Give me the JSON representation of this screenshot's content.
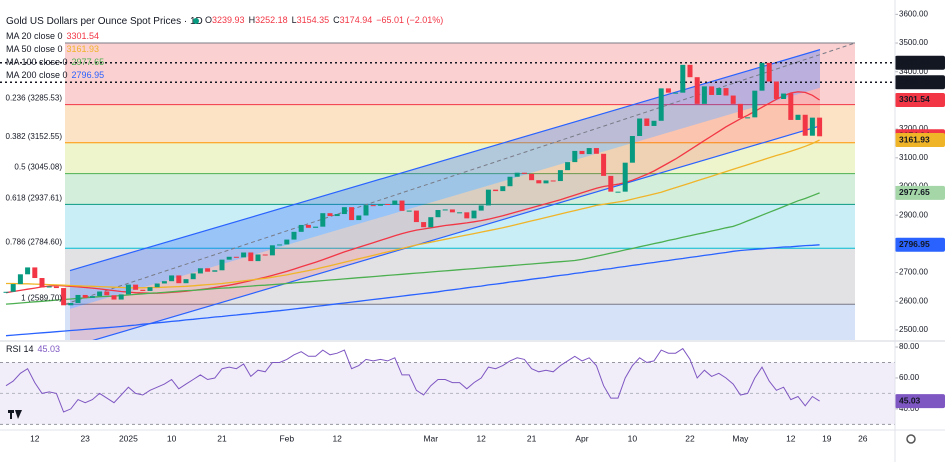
{
  "chart_data": {
    "type": "candlestick",
    "title": "Gold US Dollars per Ounce Spot Prices · 1D",
    "ohlc": [
      {
        "label": "O",
        "value": 3239.93
      },
      {
        "label": "H",
        "value": 3252.18
      },
      {
        "label": "L",
        "value": 3154.35
      },
      {
        "label": "C",
        "value": 3174.94
      }
    ],
    "change": "−65.01 (−2.01%)",
    "up_color": "#089981",
    "down_color": "#f23645",
    "categories": [
      null,
      null,
      null,
      null,
      "12",
      null,
      null,
      null,
      null,
      null,
      null,
      "23",
      null,
      null,
      null,
      null,
      null,
      "2025",
      null,
      null,
      null,
      null,
      null,
      "10",
      null,
      null,
      null,
      null,
      null,
      null,
      "21",
      null,
      null,
      null,
      null,
      null,
      null,
      null,
      null,
      "Feb",
      null,
      null,
      null,
      null,
      null,
      null,
      "12",
      null,
      null,
      null,
      null,
      null,
      null,
      null,
      null,
      null,
      null,
      null,
      null,
      "Mar",
      null,
      null,
      null,
      null,
      null,
      null,
      "12",
      null,
      null,
      null,
      null,
      null,
      null,
      "21",
      null,
      null,
      null,
      null,
      null,
      null,
      "Apr",
      null,
      null,
      null,
      null,
      null,
      null,
      "10",
      null,
      null,
      null,
      null,
      null,
      null,
      null,
      "22",
      null,
      null,
      null,
      null,
      null,
      null,
      "May",
      null,
      null,
      null,
      null,
      null,
      null,
      "12",
      null,
      null,
      null,
      null,
      "19",
      null,
      null,
      null,
      null,
      "26"
    ],
    "values": [
      2633,
      2660,
      2694,
      2718,
      2681,
      2648,
      2652,
      2646,
      2586,
      2594,
      2622,
      2612,
      2618,
      2634,
      2621,
      2606,
      2624,
      2658,
      2640,
      2636,
      2649,
      2662,
      2670,
      2690,
      2663,
      2677,
      2697,
      2715,
      2703,
      2708,
      2745,
      2755,
      2753,
      2770,
      2740,
      2763,
      2760,
      2795,
      2798,
      2815,
      2842,
      2866,
      2856,
      2860,
      2907,
      2897,
      2904,
      2928,
      2883,
      2899,
      2935,
      2933,
      2939,
      2936,
      2951,
      2915,
      2916,
      2876,
      2858,
      2893,
      2918,
      2920,
      2910,
      2910,
      2889,
      2916,
      2934,
      2989,
      2984,
      3001,
      3034,
      3048,
      3044,
      3022,
      3011,
      3021,
      3019,
      3057,
      3085,
      3124,
      3113,
      3134,
      3114,
      3037,
      2982,
      2982,
      3083,
      3176,
      3237,
      3211,
      3229,
      3342,
      3327,
      3327,
      3424,
      3381,
      3288,
      3349,
      3319,
      3343,
      3317,
      3288,
      3239,
      3241,
      3334,
      3431,
      3366,
      3305,
      3324,
      3232,
      3250,
      3177,
      3240,
      3174.94,
      null,
      null,
      null,
      null,
      null,
      null
    ],
    "series": [
      {
        "name": "MA 20 close 0",
        "color": "#f23645",
        "values": [
          2630,
          2634,
          2638,
          2642,
          2646,
          2650,
          2653,
          2655,
          2654,
          2652,
          2650,
          2648,
          2646,
          2643,
          2640,
          2637,
          2634,
          2632,
          2630,
          2629,
          2628,
          2628,
          2629,
          2631,
          2633,
          2635,
          2638,
          2641,
          2644,
          2648,
          2652,
          2656,
          2661,
          2666,
          2672,
          2678,
          2684,
          2690,
          2697,
          2704,
          2712,
          2720,
          2728,
          2736,
          2745,
          2754,
          2763,
          2772,
          2780,
          2788,
          2796,
          2804,
          2812,
          2820,
          2828,
          2836,
          2842,
          2848,
          2852,
          2856,
          2860,
          2864,
          2867,
          2870,
          2873,
          2877,
          2881,
          2886,
          2892,
          2898,
          2905,
          2912,
          2919,
          2926,
          2933,
          2940,
          2947,
          2954,
          2962,
          2970,
          2978,
          2986,
          2994,
          3000,
          3004,
          3008,
          3014,
          3022,
          3032,
          3042,
          3054,
          3068,
          3082,
          3096,
          3112,
          3128,
          3144,
          3160,
          3176,
          3192,
          3208,
          3222,
          3236,
          3248,
          3262,
          3276,
          3290,
          3304,
          3316,
          3326,
          3330,
          3328,
          3318,
          3301.54,
          null,
          null,
          null,
          null,
          null,
          null
        ]
      },
      {
        "name": "MA 50 close 0",
        "color": "#f0b429",
        "values": [
          2662,
          2662,
          2661,
          2661,
          2660,
          2659,
          2658,
          2657,
          2656,
          2655,
          2654,
          2653,
          2652,
          2651,
          2650,
          2649,
          2648,
          2647,
          2647,
          2647,
          2648,
          2648,
          2649,
          2650,
          2651,
          2652,
          2654,
          2656,
          2658,
          2660,
          2662,
          2665,
          2668,
          2671,
          2674,
          2677,
          2680,
          2684,
          2688,
          2692,
          2697,
          2702,
          2707,
          2712,
          2718,
          2724,
          2730,
          2736,
          2742,
          2748,
          2754,
          2760,
          2766,
          2772,
          2778,
          2784,
          2790,
          2796,
          2801,
          2806,
          2811,
          2816,
          2821,
          2826,
          2831,
          2836,
          2841,
          2846,
          2851,
          2856,
          2862,
          2868,
          2874,
          2880,
          2886,
          2892,
          2898,
          2904,
          2910,
          2916,
          2922,
          2928,
          2934,
          2938,
          2942,
          2946,
          2950,
          2956,
          2962,
          2968,
          2974,
          2980,
          2988,
          2996,
          3004,
          3012,
          3020,
          3028,
          3036,
          3044,
          3052,
          3060,
          3068,
          3076,
          3084,
          3092,
          3100,
          3108,
          3115,
          3123,
          3131,
          3140,
          3150,
          3161.93,
          null,
          null,
          null,
          null,
          null,
          null
        ]
      },
      {
        "name": "MA 100 close 0",
        "color": "#4caf50",
        "values": [
          2590,
          2592,
          2594,
          2596,
          2598,
          2600,
          2602,
          2604,
          2606,
          2608,
          2610,
          2612,
          2614,
          2616,
          2617,
          2618,
          2620,
          2622,
          2624,
          2626,
          2628,
          2629,
          2631,
          2633,
          2635,
          2637,
          2638,
          2640,
          2642,
          2644,
          2646,
          2647,
          2649,
          2651,
          2653,
          2655,
          2656,
          2658,
          2660,
          2662,
          2664,
          2666,
          2668,
          2670,
          2672,
          2674,
          2676,
          2678,
          2680,
          2682,
          2684,
          2686,
          2688,
          2690,
          2692,
          2694,
          2696,
          2698,
          2700,
          2702,
          2704,
          2706,
          2708,
          2710,
          2712,
          2714,
          2716,
          2718,
          2720,
          2722,
          2724,
          2726,
          2728,
          2730,
          2732,
          2734,
          2736,
          2738,
          2740,
          2742,
          2746,
          2751,
          2757,
          2762,
          2768,
          2773,
          2779,
          2784,
          2790,
          2795,
          2801,
          2806,
          2812,
          2817,
          2823,
          2828,
          2834,
          2839,
          2845,
          2850,
          2856,
          2861,
          2870,
          2880,
          2890,
          2900,
          2910,
          2920,
          2930,
          2940,
          2950,
          2958,
          2968,
          2977.65,
          null,
          null,
          null,
          null,
          null,
          null
        ]
      },
      {
        "name": "MA 200 close 0",
        "color": "#2962ff",
        "values": [
          2480,
          2482,
          2484,
          2486,
          2488,
          2490,
          2492,
          2494,
          2496,
          2498,
          2500,
          2502,
          2504,
          2506,
          2508,
          2510,
          2512,
          2515,
          2517,
          2520,
          2522,
          2525,
          2527,
          2530,
          2532,
          2535,
          2537,
          2540,
          2542,
          2545,
          2547,
          2550,
          2552,
          2555,
          2557,
          2560,
          2562,
          2565,
          2567,
          2570,
          2573,
          2576,
          2579,
          2582,
          2585,
          2588,
          2591,
          2594,
          2597,
          2600,
          2603,
          2606,
          2609,
          2612,
          2615,
          2618,
          2621,
          2624,
          2627,
          2630,
          2633,
          2637,
          2640,
          2643,
          2647,
          2650,
          2653,
          2657,
          2660,
          2663,
          2667,
          2670,
          2673,
          2677,
          2680,
          2683,
          2687,
          2690,
          2693,
          2697,
          2700,
          2704,
          2707,
          2711,
          2714,
          2718,
          2721,
          2725,
          2728,
          2732,
          2735,
          2739,
          2742,
          2746,
          2749,
          2753,
          2756,
          2760,
          2763,
          2767,
          2770,
          2774,
          2777,
          2779,
          2781,
          2783,
          2785,
          2787,
          2789,
          2790,
          2792,
          2794,
          2795,
          2796.95,
          null,
          null,
          null,
          null,
          null,
          null
        ]
      }
    ],
    "ylim": [
      2465,
      3650
    ],
    "yticks": [
      {
        "value": 3600,
        "label": "3600.00"
      },
      {
        "value": 3500,
        "label": "3500.00"
      },
      {
        "value": 3400,
        "label": "3400.00"
      },
      {
        "value": 3200,
        "label": "3200.00"
      },
      {
        "value": 3100,
        "label": "3100.00"
      },
      {
        "value": 3000,
        "label": "3000.00"
      },
      {
        "value": 2900,
        "label": "2900.00"
      },
      {
        "value": 2700,
        "label": "2700.00"
      },
      {
        "value": 2600,
        "label": "2600.00"
      },
      {
        "value": 2500,
        "label": "2500.00"
      }
    ],
    "grid": false,
    "fib_top": 3500,
    "fib_levels": [
      {
        "label": "0.236 (3285.53)",
        "value": 3285.53,
        "color": "#f23645",
        "fill": "#fbd0d0"
      },
      {
        "label": "0.382 (3152.55)",
        "value": 3152.55,
        "color": "#ff9800",
        "fill": "#fde3c6"
      },
      {
        "label": "0.5 (3045.08)",
        "value": 3045.08,
        "color": "#4caf50",
        "fill": "#eef4cc"
      },
      {
        "label": "0.618 (2937.61)",
        "value": 2937.61,
        "color": "#089981",
        "fill": "#d3efdc"
      },
      {
        "label": "0.786 (2784.60)",
        "value": 2784.6,
        "color": "#00bcd4",
        "fill": "#c9eef5"
      },
      {
        "label": "1 (2589.70)",
        "value": 2589.7,
        "color": "#787b86",
        "fill": "#e2e2e4"
      }
    ],
    "fib_below_fill": "#d6e2f8",
    "channel": {
      "upper": [
        2707,
        3477
      ],
      "lower": [
        2440,
        3211
      ]
    },
    "hlines": [
      3431.44,
      3363.25
    ],
    "rsi": {
      "name": "RSI 14",
      "color": "#7e57c2",
      "values": [
        55,
        58,
        63,
        66,
        57,
        50,
        51,
        50,
        38,
        40,
        46,
        44,
        46,
        50,
        47,
        44,
        49,
        54,
        50,
        49,
        52,
        54,
        56,
        59,
        53,
        56,
        59,
        62,
        59,
        60,
        66,
        67,
        66,
        69,
        61,
        65,
        64,
        70,
        70,
        72,
        75,
        77,
        74,
        74,
        78,
        75,
        76,
        78,
        66,
        68,
        72,
        71,
        72,
        71,
        73,
        62,
        62,
        52,
        49,
        55,
        59,
        59,
        57,
        57,
        53,
        57,
        60,
        67,
        66,
        68,
        71,
        73,
        72,
        66,
        64,
        65,
        64,
        68,
        71,
        74,
        71,
        73,
        68,
        55,
        47,
        47,
        60,
        68,
        73,
        70,
        71,
        78,
        76,
        76,
        79,
        72,
        60,
        65,
        61,
        63,
        60,
        56,
        49,
        50,
        60,
        67,
        58,
        52,
        54,
        46,
        48,
        42,
        48,
        45.03,
        null,
        null,
        null,
        null,
        null,
        null
      ],
      "ylim": [
        27,
        82.6
      ],
      "yticks": [
        {
          "value": 80,
          "label": "80.00"
        },
        {
          "value": 60,
          "label": "60.00"
        },
        {
          "value": 40,
          "label": "40.00"
        }
      ],
      "band": [
        70,
        30
      ],
      "mid": 50
    }
  }
}
